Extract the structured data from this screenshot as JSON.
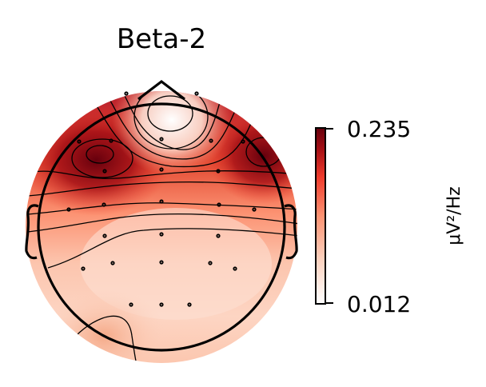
{
  "figure": {
    "title": "Beta-2",
    "colorbar": {
      "max_label": "0.235",
      "min_label": "0.012",
      "unit_label": "μV²/Hz",
      "colormap": [
        "#ffffff",
        "#fcd2bf",
        "#fc9272",
        "#ef3b2c",
        "#a50f15",
        "#67000d"
      ]
    }
  },
  "chart_data": {
    "type": "heatmap",
    "title": "Beta-2",
    "colorbar_range": [
      0.012,
      0.235
    ],
    "colorbar_unit": "μV²/Hz"
  }
}
